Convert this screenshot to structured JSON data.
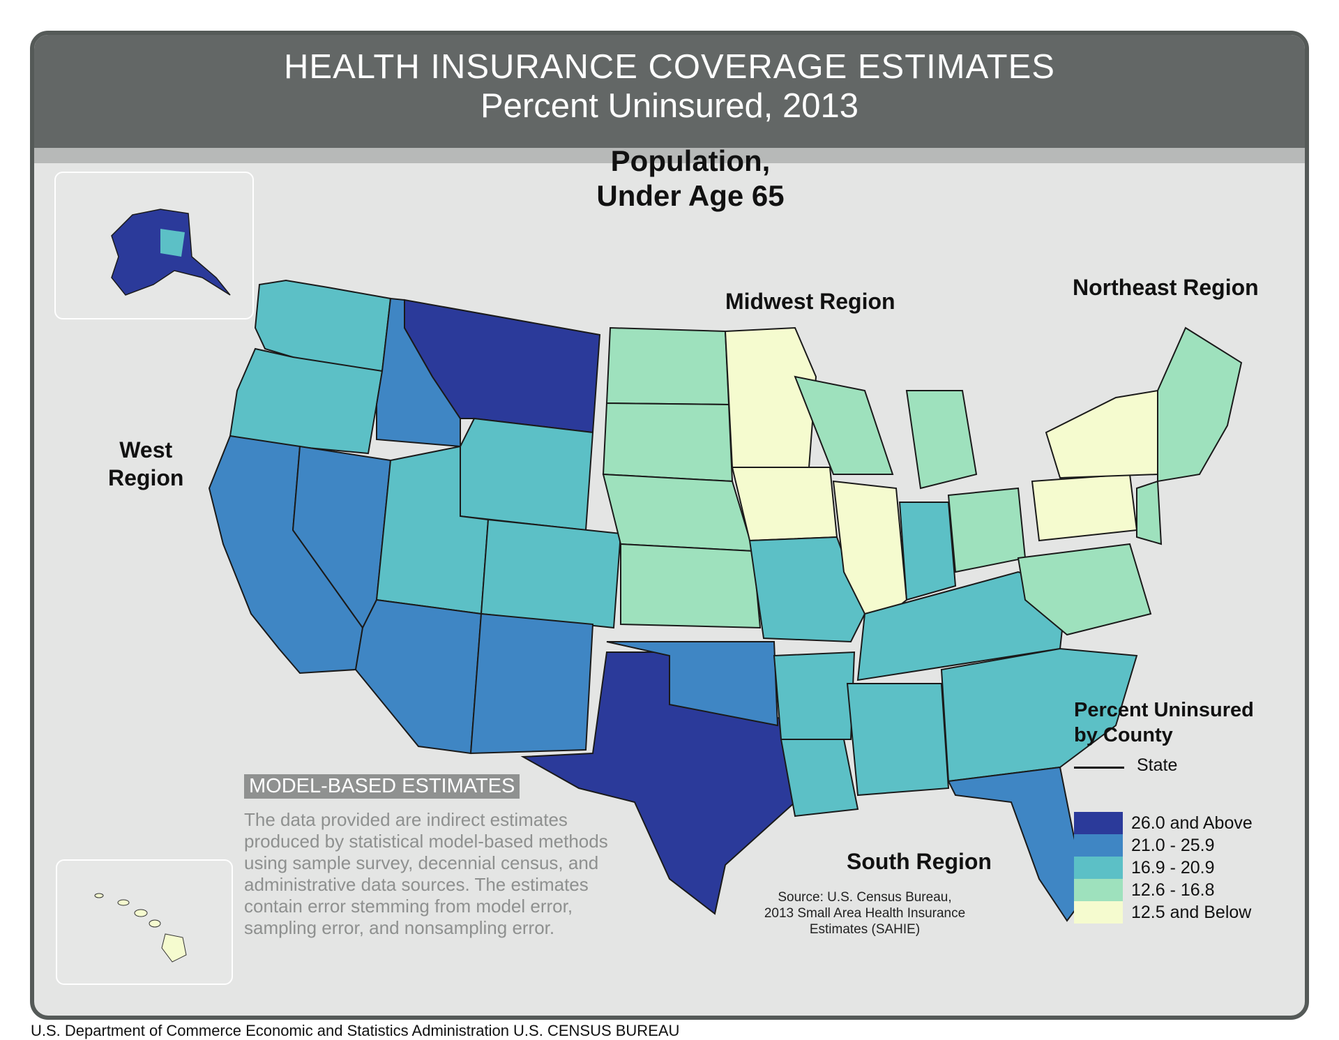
{
  "header": {
    "title": "HEALTH INSURANCE COVERAGE ESTIMATES",
    "subtitle": "Percent Uninsured, 2013"
  },
  "map": {
    "population_title": "Population,\nUnder Age 65",
    "regions": {
      "west": "West\nRegion",
      "midwest": "Midwest Region",
      "northeast": "Northeast Region",
      "south": "South Region"
    },
    "insets": [
      "alaska-inset",
      "hawaii-inset"
    ]
  },
  "model_based": {
    "badge": "MODEL-BASED ESTIMATES",
    "text": "The data provided are indirect estimates produced by statistical model-based methods using sample survey, decennial census, and administrative data sources. The estimates contain error stemming from model error, sampling error, and nonsampling error."
  },
  "source": "Source:  U.S. Census Bureau,\n2013 Small Area Health Insurance\nEstimates (SAHIE)",
  "legend": {
    "title": "Percent Uninsured\nby County",
    "state_label": "State",
    "classes": [
      {
        "label": "26.0 and Above",
        "color": "#2b3a9a"
      },
      {
        "label": "21.0 - 25.9",
        "color": "#3f86c4"
      },
      {
        "label": "16.9 - 20.9",
        "color": "#5cc0c6"
      },
      {
        "label": "12.6 - 16.8",
        "color": "#9ee1bd"
      },
      {
        "label": "12.5 and Below",
        "color": "#f5fbcf"
      }
    ]
  },
  "footer": "U.S. Department of Commerce  Economic and Statistics Administration  U.S. CENSUS BUREAU"
}
